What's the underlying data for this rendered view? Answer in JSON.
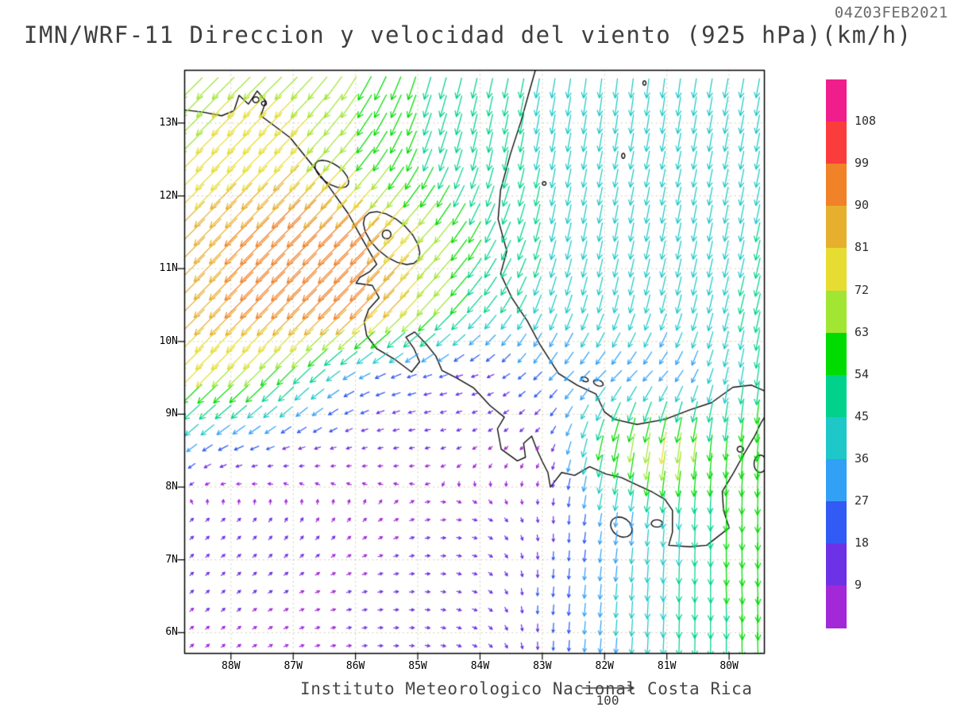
{
  "header": {
    "timestamp": "04Z03FEB2021",
    "title": "IMN/WRF-11 Direccion y velocidad del viento (925 hPa)(km/h)"
  },
  "footer": {
    "credit": "Instituto Meteorologico Nacional Costa Rica",
    "reference_value": "100"
  },
  "axes": {
    "lat_labels": [
      "13N",
      "12N",
      "11N",
      "10N",
      "9N",
      "8N",
      "7N",
      "6N"
    ],
    "lat_values": [
      13,
      12,
      11,
      10,
      9,
      8,
      7,
      6
    ],
    "lon_labels": [
      "88W",
      "87W",
      "86W",
      "85W",
      "84W",
      "83W",
      "82W",
      "81W",
      "80W"
    ],
    "lon_values": [
      -88,
      -87,
      -86,
      -85,
      -84,
      -83,
      -82,
      -81,
      -80
    ]
  },
  "chart_data": {
    "type": "vector_field",
    "title": "IMN/WRF-11 Direccion y velocidad del viento (925 hPa)(km/h)",
    "valid_time": "04Z03FEB2021",
    "variable": "wind direction and speed at 925 hPa",
    "units": "km/h",
    "lon_range": [
      -88.75,
      -79.44
    ],
    "lat_range": [
      5.72,
      13.73
    ],
    "reference_vector": 100,
    "speed_levels": [
      9,
      18,
      27,
      36,
      45,
      54,
      63,
      72,
      81,
      90,
      99,
      108
    ],
    "speed_colors_low_to_high": [
      "#a228d8",
      "#6e32e6",
      "#325af5",
      "#32a0f5",
      "#1ec8c8",
      "#00d28c",
      "#00dc00",
      "#a0e632",
      "#e6dc32",
      "#e6af2d",
      "#f08228",
      "#fa3c3c",
      "#f01e8c"
    ],
    "wind_grid": {
      "lons": [
        -89,
        -88,
        -87,
        -86,
        -85,
        -84,
        -83,
        -82,
        -81,
        -80,
        -79.4
      ],
      "lats": [
        13.7,
        12.5,
        11.5,
        10.5,
        9.5,
        8.5,
        7.5,
        6.5,
        5.7
      ],
      "u_kmh": [
        [
          -45,
          -50,
          -50,
          -30,
          -15,
          -10,
          -8,
          -5,
          -5,
          -8,
          -8
        ],
        [
          -50,
          -54,
          -54,
          -40,
          -20,
          -10,
          -8,
          -8,
          -8,
          -8,
          -8
        ],
        [
          -57,
          -64,
          -68,
          -68,
          -50,
          -25,
          -10,
          -8,
          -8,
          -8,
          -10
        ],
        [
          -57,
          -64,
          -67,
          -70,
          -52,
          -32,
          -15,
          -10,
          -10,
          -10,
          -12
        ],
        [
          -52,
          -50,
          -39,
          -24,
          -19,
          -14,
          -18,
          -25,
          -20,
          -8,
          -6
        ],
        [
          -22,
          -20,
          -14,
          -11,
          -11,
          -7,
          -5,
          -12,
          -10,
          -5,
          -5
        ],
        [
          8,
          9,
          6,
          6,
          9,
          10,
          2,
          -5,
          -3,
          0,
          0
        ],
        [
          7,
          7,
          8,
          9,
          10,
          11,
          -2,
          -3,
          -2,
          2,
          2
        ],
        [
          6,
          7,
          8,
          9,
          10,
          10,
          0,
          -3,
          -2,
          0,
          2
        ]
      ],
      "v_kmh": [
        [
          -45,
          -50,
          -50,
          -55,
          -52,
          -44,
          -44,
          -45,
          -45,
          -44,
          -44
        ],
        [
          -50,
          -54,
          -54,
          -48,
          -50,
          -47,
          -44,
          -41,
          -41,
          -41,
          -41
        ],
        [
          -57,
          -64,
          -68,
          -68,
          -50,
          -48,
          -44,
          -42,
          -42,
          -42,
          -45
        ],
        [
          -57,
          -64,
          -67,
          -70,
          -55,
          -38,
          -42,
          -40,
          -42,
          -42,
          -50
        ],
        [
          -52,
          -50,
          -39,
          -12,
          -5,
          -4,
          -18,
          -25,
          -22,
          -39,
          -48
        ],
        [
          -20,
          -8,
          -4,
          -3,
          -2,
          -5,
          -6,
          -60,
          -75,
          -55,
          -65
        ],
        [
          8,
          7,
          9,
          6,
          3,
          -3,
          -13,
          -29,
          -40,
          -55,
          -60
        ],
        [
          6,
          6,
          4,
          2,
          0,
          -4,
          -20,
          -35,
          -45,
          -55,
          -60
        ],
        [
          5,
          5,
          3,
          1,
          -1,
          -5,
          -18,
          -33,
          -45,
          -52,
          -58
        ]
      ]
    }
  }
}
